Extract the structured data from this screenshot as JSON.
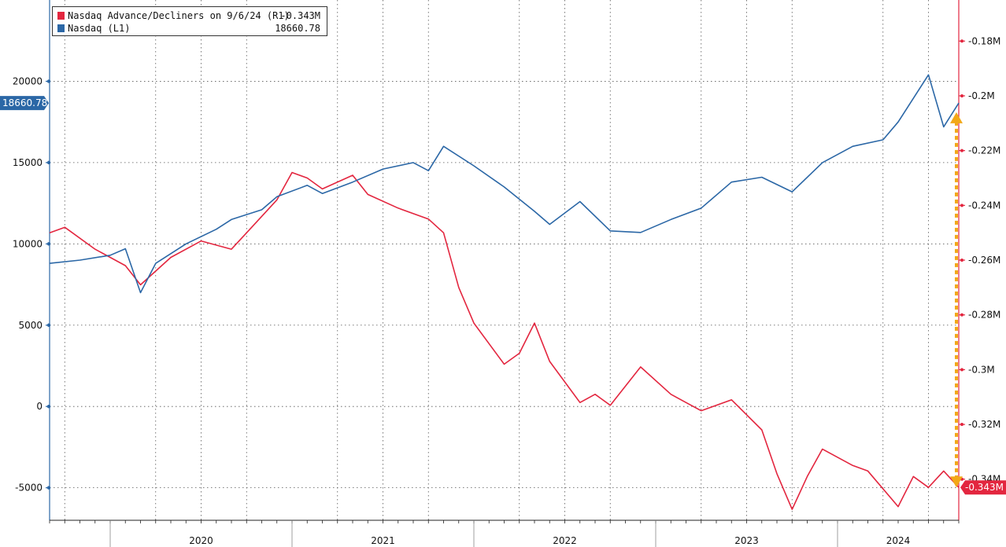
{
  "legend": [
    {
      "name": "Nasdaq Advance/Decliners on 9/6/24 (R1)",
      "value": "-0.343M",
      "color": "#e3263f"
    },
    {
      "name": "Nasdaq (L1)",
      "value": "18660.78",
      "color": "#2b67a6"
    }
  ],
  "badges": {
    "left": "18660.78",
    "right": "-0.343M"
  },
  "chart_data": {
    "type": "line",
    "x_axis": {
      "labels": [
        "2020",
        "2021",
        "2022",
        "2023",
        "2024"
      ],
      "range": [
        "2019-09",
        "2024-09"
      ]
    },
    "left_axis": {
      "range": [
        -7000,
        25000
      ],
      "ticks": [
        -5000,
        0,
        5000,
        10000,
        15000,
        20000
      ],
      "tick_labels": [
        "-5000",
        "0",
        "5000",
        "10000",
        "15000",
        "20000"
      ]
    },
    "right_axis": {
      "range": [
        -0.355,
        -0.165
      ],
      "ticks": [
        -0.34,
        -0.32,
        -0.3,
        -0.28,
        -0.26,
        -0.24,
        -0.22,
        -0.2,
        -0.18
      ],
      "tick_labels": [
        "-0.34M",
        "-0.32M",
        "-0.3M",
        "-0.28M",
        "-0.26M",
        "-0.24M",
        "-0.22M",
        "-0.2M",
        "-0.18M"
      ]
    },
    "grid": true,
    "legend_position": "top-left",
    "series": [
      {
        "name": "Nasdaq (L1)",
        "axis": "left",
        "color": "#2b67a6",
        "x": [
          "2019-09",
          "2019-11",
          "2020-01",
          "2020-02",
          "2020-03",
          "2020-04",
          "2020-06",
          "2020-08",
          "2020-09",
          "2020-11",
          "2020-12",
          "2021-02",
          "2021-03",
          "2021-05",
          "2021-07",
          "2021-09",
          "2021-10",
          "2021-11",
          "2022-01",
          "2022-03",
          "2022-05",
          "2022-06",
          "2022-08",
          "2022-10",
          "2022-12",
          "2023-02",
          "2023-04",
          "2023-06",
          "2023-08",
          "2023-10",
          "2023-12",
          "2024-02",
          "2024-04",
          "2024-05",
          "2024-07",
          "2024-08",
          "2024-09"
        ],
        "y": [
          8800,
          9000,
          9300,
          9700,
          7000,
          8800,
          10000,
          10900,
          11500,
          12100,
          12900,
          13600,
          13100,
          13800,
          14600,
          15000,
          14500,
          16000,
          14800,
          13500,
          12000,
          11200,
          12600,
          10800,
          10700,
          11500,
          12200,
          13800,
          14100,
          13200,
          15000,
          16000,
          16400,
          17500,
          20400,
          17200,
          18660.78
        ]
      },
      {
        "name": "Nasdaq Advance/Decliners on 9/6/24 (R1)",
        "axis": "right",
        "color": "#e3263f",
        "x": [
          "2019-09",
          "2019-10",
          "2019-12",
          "2020-02",
          "2020-03",
          "2020-05",
          "2020-07",
          "2020-09",
          "2020-10",
          "2020-12",
          "2021-01",
          "2021-02",
          "2021-03",
          "2021-05",
          "2021-06",
          "2021-08",
          "2021-10",
          "2021-11",
          "2021-12",
          "2022-01",
          "2022-03",
          "2022-04",
          "2022-05",
          "2022-06",
          "2022-08",
          "2022-09",
          "2022-10",
          "2022-12",
          "2023-02",
          "2023-03",
          "2023-04",
          "2023-06",
          "2023-08",
          "2023-09",
          "2023-10",
          "2023-11",
          "2023-12",
          "2024-02",
          "2024-03",
          "2024-05",
          "2024-06",
          "2024-07",
          "2024-08",
          "2024-09"
        ],
        "y": [
          -0.25,
          -0.248,
          -0.256,
          -0.262,
          -0.269,
          -0.259,
          -0.253,
          -0.256,
          -0.25,
          -0.238,
          -0.228,
          -0.23,
          -0.234,
          -0.229,
          -0.236,
          -0.241,
          -0.245,
          -0.25,
          -0.27,
          -0.283,
          -0.298,
          -0.294,
          -0.283,
          -0.297,
          -0.312,
          -0.309,
          -0.313,
          -0.299,
          -0.309,
          -0.312,
          -0.315,
          -0.311,
          -0.322,
          -0.338,
          -0.351,
          -0.339,
          -0.329,
          -0.335,
          -0.337,
          -0.35,
          -0.339,
          -0.343,
          -0.337,
          -0.343
        ]
      }
    ],
    "annotation": {
      "type": "dotted double-headed arrow",
      "color": "#f2a818",
      "x": "2024-09",
      "from": -0.206,
      "to": -0.343
    }
  }
}
